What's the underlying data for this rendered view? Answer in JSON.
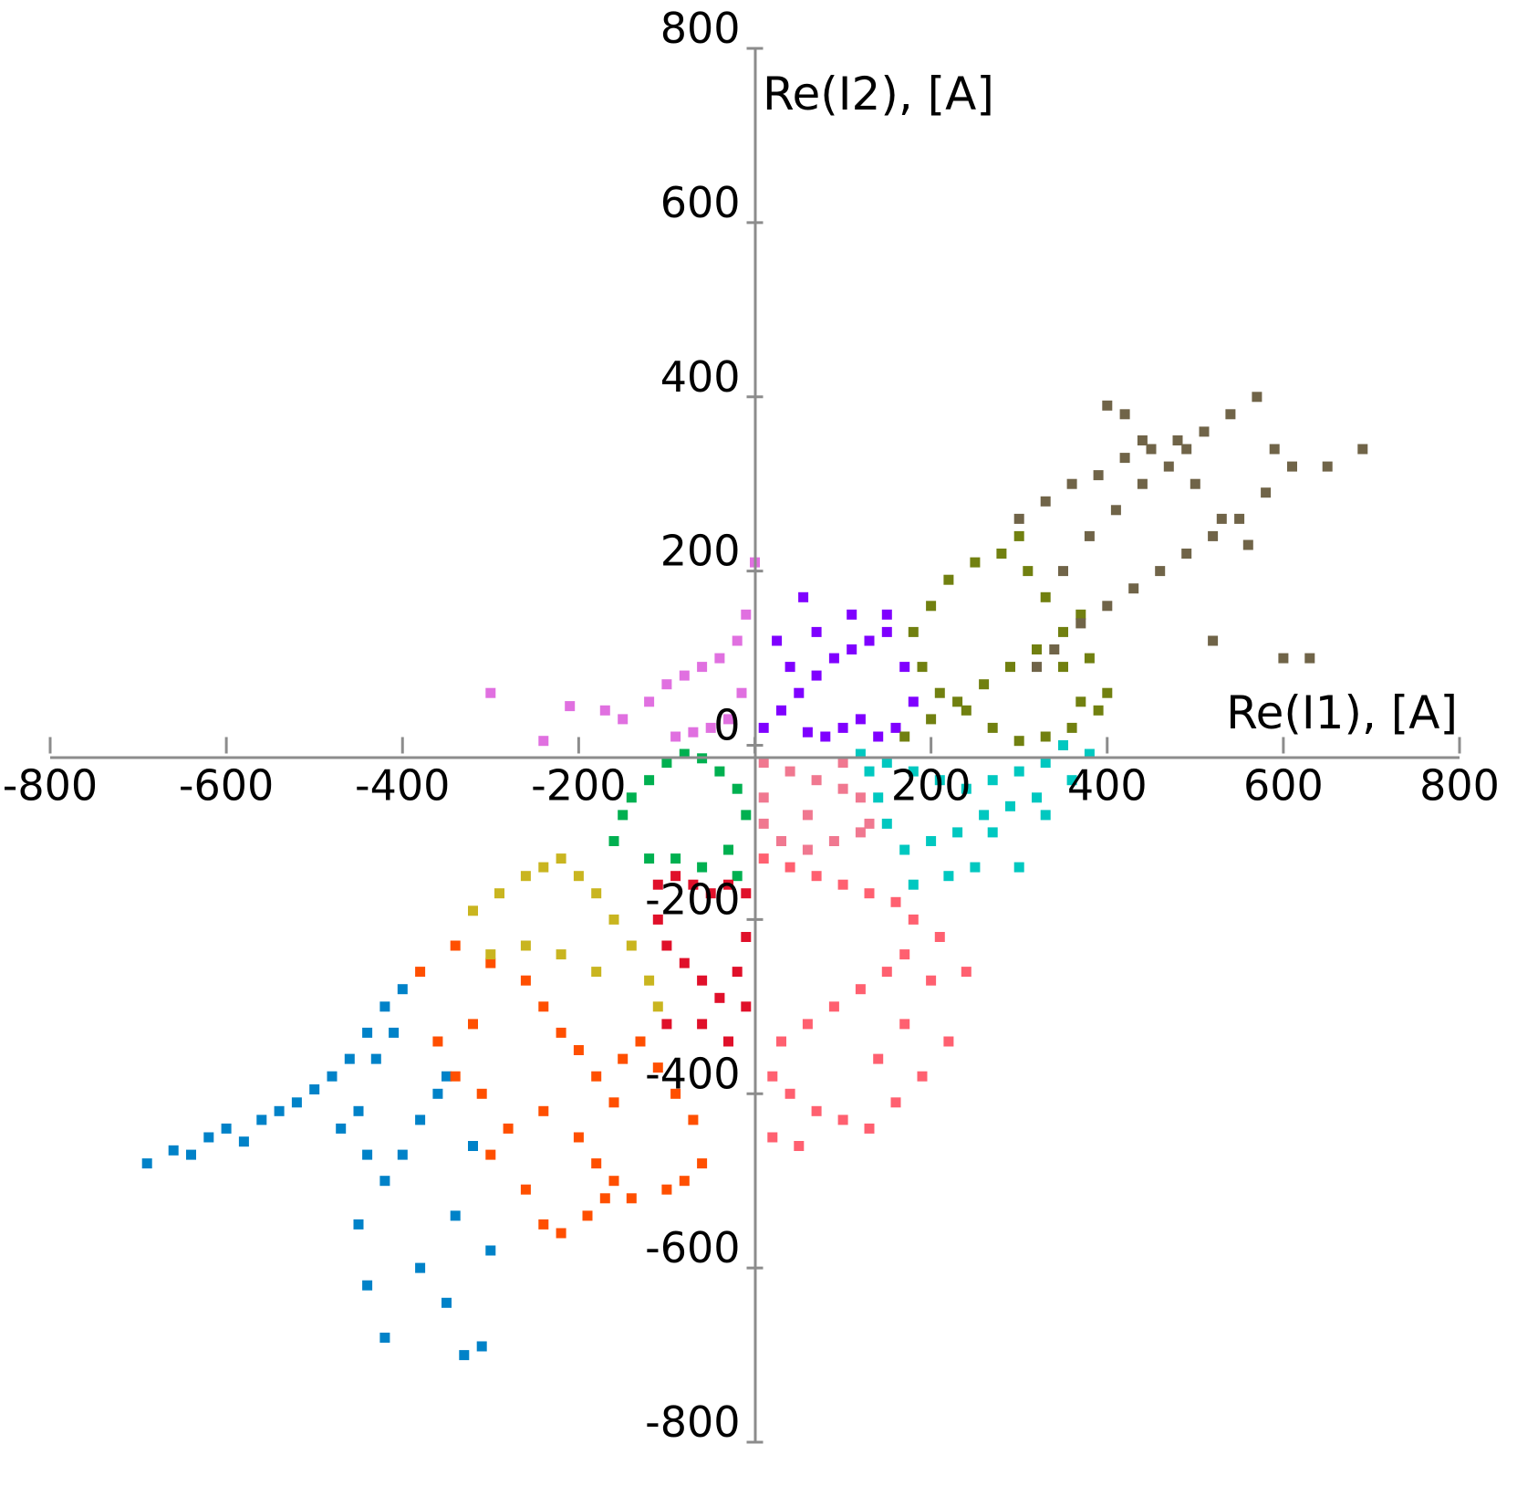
{
  "chart_data": {
    "type": "scatter",
    "xlabel": "Re(I1), [A]",
    "ylabel": "Re(I2), [A]",
    "xlim": [
      -800,
      800
    ],
    "ylim": [
      -800,
      800
    ],
    "x_ticks": [
      "-800",
      "-600",
      "-400",
      "-200",
      "0",
      "200",
      "400",
      "600",
      "800"
    ],
    "y_ticks": [
      "-800",
      "-600",
      "-400",
      "-200",
      "0",
      "200",
      "400",
      "600",
      "800"
    ],
    "axes_cross_at": [
      0,
      0
    ],
    "grid": false,
    "legend": "none",
    "series": [
      {
        "color": "#0082C8",
        "values": [
          [
            -690,
            -480
          ],
          [
            -660,
            -465
          ],
          [
            -640,
            -470
          ],
          [
            -620,
            -450
          ],
          [
            -600,
            -440
          ],
          [
            -580,
            -455
          ],
          [
            -560,
            -430
          ],
          [
            -540,
            -420
          ],
          [
            -520,
            -410
          ],
          [
            -500,
            -395
          ],
          [
            -480,
            -380
          ],
          [
            -460,
            -360
          ],
          [
            -440,
            -330
          ],
          [
            -420,
            -300
          ],
          [
            -400,
            -280
          ],
          [
            -410,
            -330
          ],
          [
            -430,
            -360
          ],
          [
            -450,
            -420
          ],
          [
            -470,
            -440
          ],
          [
            -440,
            -470
          ],
          [
            -420,
            -500
          ],
          [
            -400,
            -470
          ],
          [
            -380,
            -430
          ],
          [
            -360,
            -400
          ],
          [
            -450,
            -550
          ],
          [
            -440,
            -620
          ],
          [
            -420,
            -680
          ],
          [
            -380,
            -600
          ],
          [
            -350,
            -640
          ],
          [
            -330,
            -700
          ],
          [
            -310,
            -690
          ],
          [
            -300,
            -580
          ],
          [
            -340,
            -540
          ],
          [
            -320,
            -460
          ],
          [
            -350,
            -380
          ]
        ]
      },
      {
        "color": "#FF4F00",
        "values": [
          [
            -380,
            -260
          ],
          [
            -340,
            -230
          ],
          [
            -300,
            -250
          ],
          [
            -260,
            -270
          ],
          [
            -240,
            -300
          ],
          [
            -220,
            -330
          ],
          [
            -200,
            -350
          ],
          [
            -180,
            -380
          ],
          [
            -160,
            -410
          ],
          [
            -150,
            -360
          ],
          [
            -130,
            -340
          ],
          [
            -110,
            -370
          ],
          [
            -90,
            -400
          ],
          [
            -70,
            -430
          ],
          [
            -60,
            -480
          ],
          [
            -80,
            -500
          ],
          [
            -100,
            -510
          ],
          [
            -140,
            -520
          ],
          [
            -160,
            -500
          ],
          [
            -180,
            -480
          ],
          [
            -200,
            -450
          ],
          [
            -240,
            -420
          ],
          [
            -280,
            -440
          ],
          [
            -300,
            -470
          ],
          [
            -260,
            -510
          ],
          [
            -240,
            -550
          ],
          [
            -220,
            -560
          ],
          [
            -190,
            -540
          ],
          [
            -170,
            -520
          ],
          [
            -310,
            -400
          ],
          [
            -340,
            -380
          ],
          [
            -360,
            -340
          ],
          [
            -320,
            -320
          ]
        ]
      },
      {
        "color": "#C9B520",
        "values": [
          [
            -320,
            -190
          ],
          [
            -290,
            -170
          ],
          [
            -260,
            -150
          ],
          [
            -240,
            -140
          ],
          [
            -220,
            -130
          ],
          [
            -200,
            -150
          ],
          [
            -180,
            -170
          ],
          [
            -160,
            -200
          ],
          [
            -140,
            -230
          ],
          [
            -120,
            -270
          ],
          [
            -110,
            -300
          ],
          [
            -180,
            -260
          ],
          [
            -220,
            -240
          ],
          [
            -260,
            -230
          ],
          [
            -300,
            -240
          ]
        ]
      },
      {
        "color": "#00B050",
        "values": [
          [
            -160,
            -110
          ],
          [
            -150,
            -80
          ],
          [
            -140,
            -60
          ],
          [
            -120,
            -40
          ],
          [
            -100,
            -20
          ],
          [
            -80,
            -10
          ],
          [
            -60,
            -15
          ],
          [
            -40,
            -30
          ],
          [
            -20,
            -50
          ],
          [
            -10,
            -80
          ],
          [
            -30,
            -120
          ],
          [
            -60,
            -140
          ],
          [
            -90,
            -130
          ],
          [
            -120,
            -130
          ],
          [
            -20,
            -150
          ]
        ]
      },
      {
        "color": "#E0102A",
        "values": [
          [
            -110,
            -160
          ],
          [
            -90,
            -150
          ],
          [
            -70,
            -160
          ],
          [
            -50,
            -170
          ],
          [
            -30,
            -160
          ],
          [
            -10,
            -170
          ],
          [
            -10,
            -220
          ],
          [
            -20,
            -260
          ],
          [
            -40,
            -290
          ],
          [
            -60,
            -270
          ],
          [
            -80,
            -250
          ],
          [
            -100,
            -230
          ],
          [
            -110,
            -200
          ],
          [
            -100,
            -320
          ],
          [
            -60,
            -320
          ],
          [
            -30,
            -340
          ],
          [
            -10,
            -300
          ]
        ]
      },
      {
        "color": "#E070E0",
        "values": [
          [
            -300,
            60
          ],
          [
            -240,
            5
          ],
          [
            -210,
            45
          ],
          [
            -170,
            40
          ],
          [
            -150,
            30
          ],
          [
            -120,
            50
          ],
          [
            -100,
            70
          ],
          [
            -80,
            80
          ],
          [
            -60,
            90
          ],
          [
            -40,
            100
          ],
          [
            -20,
            120
          ],
          [
            -10,
            150
          ],
          [
            0,
            210
          ],
          [
            -15,
            60
          ],
          [
            -30,
            30
          ],
          [
            -50,
            20
          ],
          [
            -70,
            15
          ],
          [
            -90,
            10
          ]
        ]
      },
      {
        "color": "#7F00FF",
        "values": [
          [
            10,
            20
          ],
          [
            30,
            40
          ],
          [
            50,
            60
          ],
          [
            70,
            80
          ],
          [
            90,
            100
          ],
          [
            110,
            110
          ],
          [
            130,
            120
          ],
          [
            150,
            130
          ],
          [
            170,
            90
          ],
          [
            180,
            50
          ],
          [
            160,
            20
          ],
          [
            140,
            10
          ],
          [
            120,
            30
          ],
          [
            100,
            20
          ],
          [
            80,
            10
          ],
          [
            60,
            15
          ],
          [
            40,
            90
          ],
          [
            25,
            120
          ],
          [
            55,
            170
          ],
          [
            70,
            130
          ],
          [
            110,
            150
          ],
          [
            150,
            150
          ]
        ]
      },
      {
        "color": "#F07890",
        "values": [
          [
            10,
            -20
          ],
          [
            40,
            -30
          ],
          [
            70,
            -40
          ],
          [
            100,
            -50
          ],
          [
            120,
            -60
          ],
          [
            130,
            -90
          ],
          [
            120,
            -100
          ],
          [
            90,
            -110
          ],
          [
            60,
            -120
          ],
          [
            30,
            -110
          ],
          [
            10,
            -90
          ],
          [
            10,
            -60
          ],
          [
            100,
            -20
          ],
          [
            60,
            -80
          ]
        ]
      },
      {
        "color": "#FF6070",
        "values": [
          [
            10,
            -130
          ],
          [
            40,
            -140
          ],
          [
            70,
            -150
          ],
          [
            100,
            -160
          ],
          [
            130,
            -170
          ],
          [
            160,
            -180
          ],
          [
            180,
            -200
          ],
          [
            170,
            -240
          ],
          [
            150,
            -260
          ],
          [
            120,
            -280
          ],
          [
            90,
            -300
          ],
          [
            60,
            -320
          ],
          [
            30,
            -340
          ],
          [
            20,
            -380
          ],
          [
            40,
            -400
          ],
          [
            70,
            -420
          ],
          [
            100,
            -430
          ],
          [
            130,
            -440
          ],
          [
            160,
            -410
          ],
          [
            190,
            -380
          ],
          [
            220,
            -340
          ],
          [
            200,
            -270
          ],
          [
            240,
            -260
          ],
          [
            210,
            -220
          ],
          [
            170,
            -320
          ],
          [
            140,
            -360
          ],
          [
            50,
            -460
          ],
          [
            20,
            -450
          ]
        ]
      },
      {
        "color": "#00C8C0",
        "values": [
          [
            120,
            -10
          ],
          [
            150,
            -20
          ],
          [
            180,
            -30
          ],
          [
            210,
            -40
          ],
          [
            240,
            -50
          ],
          [
            270,
            -40
          ],
          [
            300,
            -30
          ],
          [
            330,
            -20
          ],
          [
            350,
            0
          ],
          [
            380,
            -10
          ],
          [
            360,
            -40
          ],
          [
            320,
            -60
          ],
          [
            290,
            -70
          ],
          [
            260,
            -80
          ],
          [
            230,
            -100
          ],
          [
            200,
            -110
          ],
          [
            170,
            -120
          ],
          [
            150,
            -90
          ],
          [
            140,
            -60
          ],
          [
            130,
            -30
          ],
          [
            330,
            -80
          ],
          [
            300,
            -140
          ],
          [
            250,
            -140
          ],
          [
            220,
            -150
          ],
          [
            180,
            -160
          ],
          [
            270,
            -100
          ]
        ]
      },
      {
        "color": "#718010",
        "values": [
          [
            170,
            10
          ],
          [
            200,
            30
          ],
          [
            230,
            50
          ],
          [
            260,
            70
          ],
          [
            290,
            90
          ],
          [
            320,
            110
          ],
          [
            350,
            130
          ],
          [
            370,
            150
          ],
          [
            380,
            100
          ],
          [
            400,
            60
          ],
          [
            390,
            40
          ],
          [
            360,
            20
          ],
          [
            330,
            10
          ],
          [
            300,
            5
          ],
          [
            270,
            20
          ],
          [
            240,
            40
          ],
          [
            210,
            60
          ],
          [
            190,
            90
          ],
          [
            180,
            130
          ],
          [
            200,
            160
          ],
          [
            220,
            190
          ],
          [
            250,
            210
          ],
          [
            280,
            220
          ],
          [
            300,
            240
          ],
          [
            310,
            200
          ],
          [
            330,
            170
          ],
          [
            350,
            90
          ],
          [
            370,
            50
          ]
        ]
      },
      {
        "color": "#706448",
        "values": [
          [
            300,
            260
          ],
          [
            330,
            280
          ],
          [
            360,
            300
          ],
          [
            390,
            310
          ],
          [
            420,
            330
          ],
          [
            450,
            340
          ],
          [
            480,
            350
          ],
          [
            510,
            360
          ],
          [
            540,
            380
          ],
          [
            570,
            400
          ],
          [
            590,
            340
          ],
          [
            610,
            320
          ],
          [
            580,
            290
          ],
          [
            550,
            260
          ],
          [
            520,
            240
          ],
          [
            490,
            220
          ],
          [
            460,
            200
          ],
          [
            430,
            180
          ],
          [
            400,
            160
          ],
          [
            370,
            140
          ],
          [
            340,
            110
          ],
          [
            320,
            90
          ],
          [
            350,
            200
          ],
          [
            380,
            240
          ],
          [
            410,
            270
          ],
          [
            440,
            300
          ],
          [
            470,
            320
          ],
          [
            500,
            300
          ],
          [
            530,
            260
          ],
          [
            560,
            230
          ],
          [
            520,
            120
          ],
          [
            690,
            340
          ],
          [
            650,
            320
          ],
          [
            600,
            100
          ],
          [
            630,
            100
          ],
          [
            400,
            390
          ],
          [
            420,
            380
          ],
          [
            440,
            350
          ],
          [
            490,
            340
          ]
        ]
      }
    ]
  }
}
